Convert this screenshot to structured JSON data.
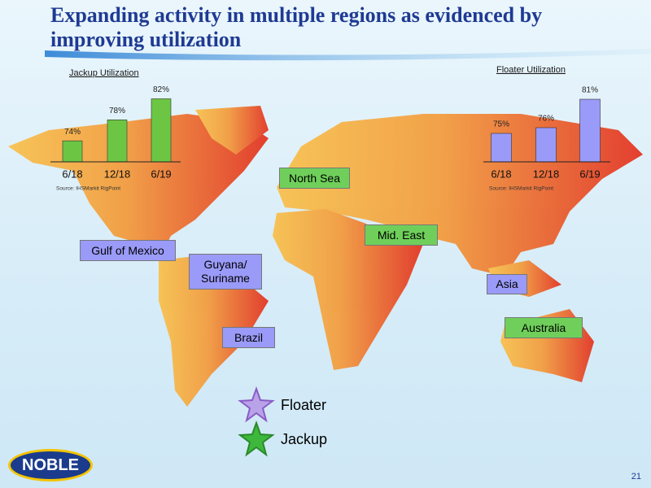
{
  "title": "Expanding activity in multiple regions as evidenced by improving utilization",
  "chart_data": [
    {
      "type": "bar",
      "title": "Jackup Utilization",
      "categories": [
        "6/18",
        "12/18",
        "6/19"
      ],
      "values": [
        74,
        78,
        82
      ],
      "value_labels": [
        "74%",
        "78%",
        "82%"
      ],
      "color": "#6cc644",
      "ylim": [
        70,
        83
      ],
      "source": "Source: IHSMarkit RigPoint"
    },
    {
      "type": "bar",
      "title": "Floater Utilization",
      "categories": [
        "6/18",
        "12/18",
        "6/19"
      ],
      "values": [
        75,
        76,
        81
      ],
      "value_labels": [
        "75%",
        "76%",
        "81%"
      ],
      "color": "#9a9af8",
      "ylim": [
        70,
        82
      ],
      "source": "Source: IHSMarkit RigPoint"
    }
  ],
  "regions": [
    {
      "name": "North Sea",
      "color": "#6fcf5a"
    },
    {
      "name": "Mid. East",
      "color": "#6fcf5a"
    },
    {
      "name": "Gulf of Mexico",
      "color": "#9a9af8"
    },
    {
      "name": "Guyana/ Suriname",
      "color": "#9a9af8"
    },
    {
      "name": "Brazil",
      "color": "#9a9af8"
    },
    {
      "name": "Asia",
      "color": "#9a9af8"
    },
    {
      "name": "Australia",
      "color": "#6fcf5a"
    }
  ],
  "legend": [
    {
      "name": "Floater",
      "color": "#8a5cc8"
    },
    {
      "name": "Jackup",
      "color": "#3db83d"
    }
  ],
  "logo": "NOBLE",
  "page_number": "21"
}
